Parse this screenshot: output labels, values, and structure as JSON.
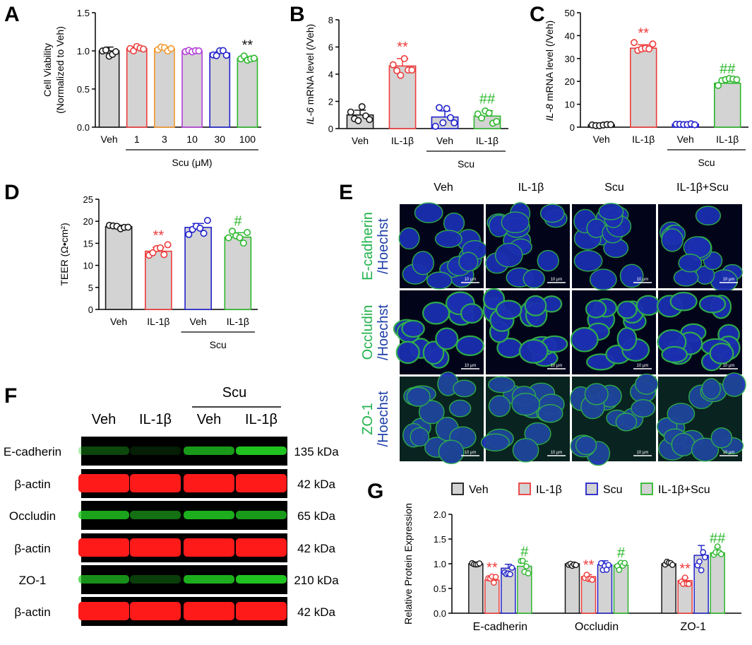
{
  "panels": {
    "A": "A",
    "B": "B",
    "C": "C",
    "D": "D",
    "E": "E",
    "F": "F",
    "G": "G"
  },
  "colors": {
    "veh": "#1a1a1a",
    "il1b": "#ee3b3b",
    "c3": "#f29a2e",
    "c10": "#b43fd9",
    "scu": "#2222cc",
    "c100": "#2db82d",
    "bar_fill": "#d3d3d3",
    "ecad_green": "#21b24b",
    "hoechst_blue": "#1e3fa8",
    "wb_red": "#ff1a1a",
    "wb_green": "#22cc22"
  },
  "chart_data": [
    {
      "id": "A",
      "type": "bar",
      "ylabel_line1": "Cell Viability",
      "ylabel_line2": "(Normalized to Veh)",
      "ylim": [
        0,
        1.5
      ],
      "yticks": [
        "0.0",
        "0.5",
        "1.0",
        "1.5"
      ],
      "categories": [
        "Veh",
        "1",
        "3",
        "10",
        "30",
        "100"
      ],
      "values": [
        1.0,
        1.03,
        1.03,
        1.0,
        0.97,
        0.9
      ],
      "errors": [
        0.05,
        0.02,
        0.02,
        0.01,
        0.02,
        0.02
      ],
      "group_label": "Scu (μM)",
      "significance": [
        "",
        "",
        "",
        "",
        "",
        "**"
      ]
    },
    {
      "id": "B",
      "type": "bar",
      "ylabel_pre": "IL-6",
      "ylabel_post": " mRNA level (/Veh)",
      "ylim": [
        0,
        8
      ],
      "yticks": [
        "0",
        "2",
        "4",
        "6",
        "8"
      ],
      "categories": [
        "Veh",
        "IL-1β",
        "Veh",
        "IL-1β"
      ],
      "values": [
        1.0,
        4.6,
        0.85,
        0.92
      ],
      "errors": [
        0.35,
        0.55,
        0.45,
        0.4
      ],
      "group_label": "Scu",
      "significance": [
        "",
        "**",
        "",
        "##"
      ]
    },
    {
      "id": "C",
      "type": "bar",
      "ylabel_pre": "IL-8",
      "ylabel_post": " mRNA level (/Veh)",
      "ylim": [
        0,
        50
      ],
      "yticks": [
        "0",
        "10",
        "20",
        "30",
        "40",
        "50"
      ],
      "categories": [
        "Veh",
        "IL-1β",
        "Veh",
        "IL-1β"
      ],
      "values": [
        1.0,
        34.5,
        1.3,
        19.2
      ],
      "errors": [
        0.2,
        1.5,
        0.2,
        1.2
      ],
      "group_label": "Scu",
      "significance": [
        "",
        "**",
        "",
        "##"
      ]
    },
    {
      "id": "D",
      "type": "bar",
      "ylabel": "TEER (Ω•cm²)",
      "ylim": [
        0,
        25
      ],
      "yticks": [
        "0",
        "5",
        "10",
        "15",
        "20",
        "25"
      ],
      "categories": [
        "Veh",
        "IL-1β",
        "Veh",
        "IL-1β"
      ],
      "values": [
        18.8,
        13.2,
        18.6,
        16.4
      ],
      "errors": [
        0.3,
        0.9,
        0.9,
        1.0
      ],
      "group_label": "Scu",
      "significance": [
        "",
        "**",
        "",
        "#"
      ]
    },
    {
      "id": "G",
      "type": "bar",
      "ylabel": "Relative Protein Expression",
      "ylim": [
        0,
        2.0
      ],
      "yticks": [
        "0.0",
        "0.5",
        "1.0",
        "1.5",
        "2.0"
      ],
      "categories": [
        "E-cadherin",
        "Occludin",
        "ZO-1"
      ],
      "legend": [
        "Veh",
        "IL-1β",
        "Scu",
        "IL-1β+Scu"
      ],
      "series": [
        {
          "name": "Veh",
          "values": [
            1.0,
            1.0,
            1.0
          ],
          "errors": [
            0.01,
            0.03,
            0.03
          ]
        },
        {
          "name": "IL-1β",
          "values": [
            0.67,
            0.74,
            0.66
          ],
          "errors": [
            0.06,
            0.04,
            0.05
          ]
        },
        {
          "name": "Scu",
          "values": [
            0.91,
            0.98,
            1.17
          ],
          "errors": [
            0.08,
            0.08,
            0.2
          ]
        },
        {
          "name": "IL-1β+Scu",
          "values": [
            0.95,
            0.97,
            1.22
          ],
          "errors": [
            0.1,
            0.06,
            0.1
          ]
        }
      ],
      "significance": [
        [
          "",
          "**",
          "",
          "#"
        ],
        [
          "",
          "**",
          "",
          "#"
        ],
        [
          "",
          "**",
          "",
          "##"
        ]
      ]
    }
  ],
  "microscopy": {
    "columns": [
      "Veh",
      "IL-1β",
      "Scu",
      "IL-1β+Scu"
    ],
    "rows": [
      {
        "marker": "E-cadherin",
        "counter": "/Hoechst"
      },
      {
        "marker": "Occludin",
        "counter": "/Hoechst"
      },
      {
        "marker": "ZO-1",
        "counter": "/Hoechst"
      }
    ],
    "scale_bar": "10 μm"
  },
  "western_blot": {
    "group_label": "Scu",
    "lanes": [
      "Veh",
      "IL-1β",
      "Veh",
      "IL-1β"
    ],
    "rows": [
      {
        "label": "E-cadherin",
        "kda": "135 kDa",
        "color": "green",
        "intensity": [
          0.35,
          0.12,
          0.75,
          0.95
        ]
      },
      {
        "label": "β-actin",
        "kda": "42 kDa",
        "color": "red",
        "intensity": [
          1,
          1,
          1,
          1
        ]
      },
      {
        "label": "Occludin",
        "kda": "65 kDa",
        "color": "green",
        "intensity": [
          0.8,
          0.55,
          0.85,
          0.75
        ]
      },
      {
        "label": "β-actin",
        "kda": "42 kDa",
        "color": "red",
        "intensity": [
          1,
          1,
          1,
          1
        ]
      },
      {
        "label": "ZO-1",
        "kda": "210 kDa",
        "color": "green",
        "intensity": [
          0.7,
          0.3,
          0.85,
          0.95
        ]
      },
      {
        "label": "β-actin",
        "kda": "42 kDa",
        "color": "red",
        "intensity": [
          1,
          1,
          1,
          1
        ]
      }
    ]
  }
}
